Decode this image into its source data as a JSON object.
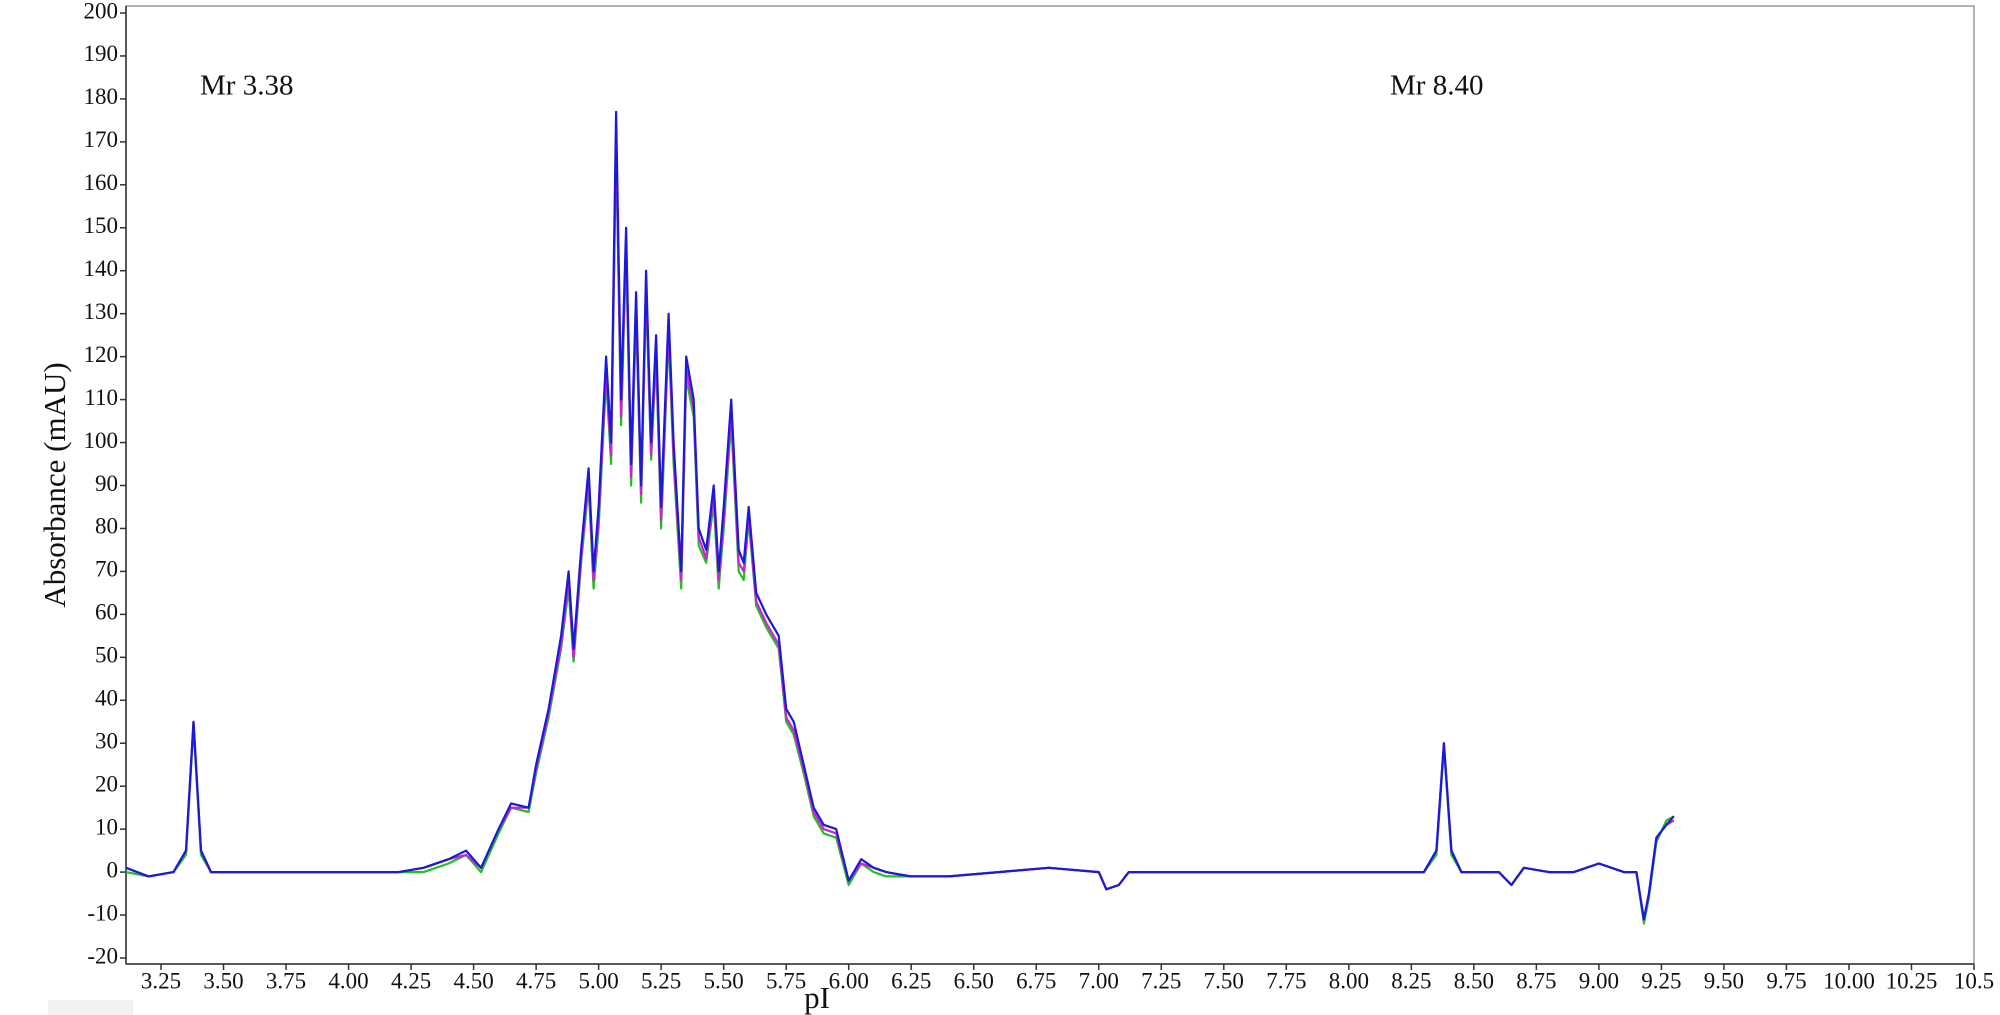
{
  "chart_data": {
    "type": "line",
    "xlabel": "pI",
    "ylabel": "Absorbance (mAU)",
    "annotations": [
      "Mr 3.38",
      "Mr 8.40"
    ],
    "xlim": [
      3.11,
      10.5
    ],
    "ylim": [
      -20,
      200
    ],
    "xticks": [
      3.25,
      {
        "value": 3.5,
        "label": "3.50"
      },
      3.75,
      {
        "value": 4,
        "label": "4.00"
      },
      4.25,
      {
        "value": 4.5,
        "label": "4.50"
      },
      4.75,
      {
        "value": 5,
        "label": "5.00"
      },
      5.25,
      {
        "value": 5.5,
        "label": "5.50"
      },
      5.75,
      {
        "value": 6,
        "label": "6.00"
      },
      6.25,
      {
        "value": 6.5,
        "label": "6.50"
      },
      6.75,
      {
        "value": 7,
        "label": "7.00"
      },
      7.25,
      {
        "value": 7.5,
        "label": "7.50"
      },
      7.75,
      {
        "value": 8,
        "label": "8.00"
      },
      8.25,
      {
        "value": 8.5,
        "label": "8.50"
      },
      8.75,
      {
        "value": 9,
        "label": "9.00"
      },
      9.25,
      {
        "value": 9.5,
        "label": "9.50"
      },
      9.75,
      {
        "value": 10,
        "label": "10.00"
      },
      10.25,
      10.5
    ],
    "yticks": [
      -20,
      -10,
      0,
      10,
      20,
      30,
      40,
      50,
      60,
      70,
      80,
      90,
      100,
      110,
      120,
      130,
      140,
      150,
      160,
      170,
      180,
      190,
      200
    ],
    "x": [
      3.11,
      3.2,
      3.3,
      3.35,
      3.38,
      3.41,
      3.45,
      3.6,
      3.8,
      4.0,
      4.2,
      4.3,
      4.4,
      4.47,
      4.53,
      4.6,
      4.65,
      4.72,
      4.75,
      4.8,
      4.85,
      4.88,
      4.9,
      4.93,
      4.96,
      4.98,
      5.0,
      5.03,
      5.05,
      5.07,
      5.09,
      5.11,
      5.13,
      5.15,
      5.17,
      5.19,
      5.21,
      5.23,
      5.25,
      5.28,
      5.3,
      5.33,
      5.35,
      5.38,
      5.4,
      5.43,
      5.46,
      5.48,
      5.5,
      5.53,
      5.56,
      5.58,
      5.6,
      5.63,
      5.67,
      5.72,
      5.75,
      5.78,
      5.82,
      5.86,
      5.9,
      5.95,
      6.0,
      6.05,
      6.1,
      6.15,
      6.25,
      6.4,
      6.6,
      6.8,
      7.0,
      7.03,
      7.08,
      7.12,
      7.3,
      7.5,
      7.8,
      8.0,
      8.3,
      8.35,
      8.38,
      8.41,
      8.45,
      8.6,
      8.65,
      8.7,
      8.8,
      8.9,
      9.0,
      9.1,
      9.15,
      9.18,
      9.2,
      9.23,
      9.27,
      9.3
    ],
    "series": [
      {
        "color": "#22c022",
        "values": [
          0,
          -1,
          0,
          4,
          34,
          4,
          0,
          0,
          0,
          0,
          0,
          0,
          2,
          4,
          0,
          9,
          15,
          14,
          23,
          36,
          52,
          66,
          49,
          72,
          90,
          66,
          80,
          115,
          95,
          170,
          104,
          145,
          90,
          130,
          86,
          135,
          96,
          120,
          80,
          125,
          95,
          66,
          115,
          106,
          76,
          72,
          86,
          66,
          80,
          105,
          70,
          68,
          82,
          62,
          57,
          52,
          35,
          32,
          23,
          13,
          9,
          8,
          -3,
          2,
          0,
          -1,
          -1,
          -1,
          0,
          1,
          0,
          -4,
          -3,
          0,
          0,
          0,
          0,
          0,
          0,
          4,
          29,
          4,
          0,
          0,
          -3,
          1,
          0,
          0,
          2,
          0,
          0,
          -12,
          -6,
          7,
          12,
          13
        ]
      },
      {
        "color": "#d020d0",
        "values": [
          1,
          -1,
          0,
          5,
          35,
          5,
          0,
          0,
          0,
          0,
          0,
          1,
          3,
          4,
          1,
          10,
          15,
          15,
          24,
          37,
          53,
          68,
          50,
          73,
          92,
          68,
          82,
          117,
          97,
          172,
          106,
          147,
          92,
          132,
          88,
          137,
          97,
          122,
          82,
          127,
          97,
          68,
          117,
          108,
          78,
          73,
          88,
          68,
          82,
          107,
          72,
          70,
          83,
          63,
          58,
          53,
          36,
          33,
          24,
          14,
          10,
          9,
          -2,
          2,
          1,
          0,
          -1,
          -1,
          0,
          1,
          0,
          -4,
          -3,
          0,
          0,
          0,
          0,
          0,
          0,
          5,
          30,
          5,
          0,
          0,
          -3,
          1,
          0,
          0,
          2,
          0,
          0,
          -11,
          -5,
          8,
          11,
          12
        ]
      },
      {
        "color": "#1a1ad8",
        "values": [
          1,
          -1,
          0,
          5,
          35,
          5,
          0,
          0,
          0,
          0,
          0,
          1,
          3,
          5,
          1,
          10,
          16,
          15,
          25,
          38,
          55,
          70,
          52,
          75,
          94,
          70,
          85,
          120,
          100,
          177,
          110,
          150,
          95,
          135,
          90,
          140,
          100,
          125,
          85,
          130,
          100,
          70,
          120,
          110,
          80,
          75,
          90,
          70,
          85,
          110,
          75,
          72,
          85,
          65,
          60,
          55,
          38,
          35,
          25,
          15,
          11,
          10,
          -2,
          3,
          1,
          0,
          -1,
          -1,
          0,
          1,
          0,
          -4,
          -3,
          0,
          0,
          0,
          0,
          0,
          0,
          5,
          30,
          5,
          0,
          0,
          -3,
          1,
          0,
          0,
          2,
          0,
          0,
          -11,
          -5,
          8,
          11,
          13
        ]
      }
    ]
  }
}
